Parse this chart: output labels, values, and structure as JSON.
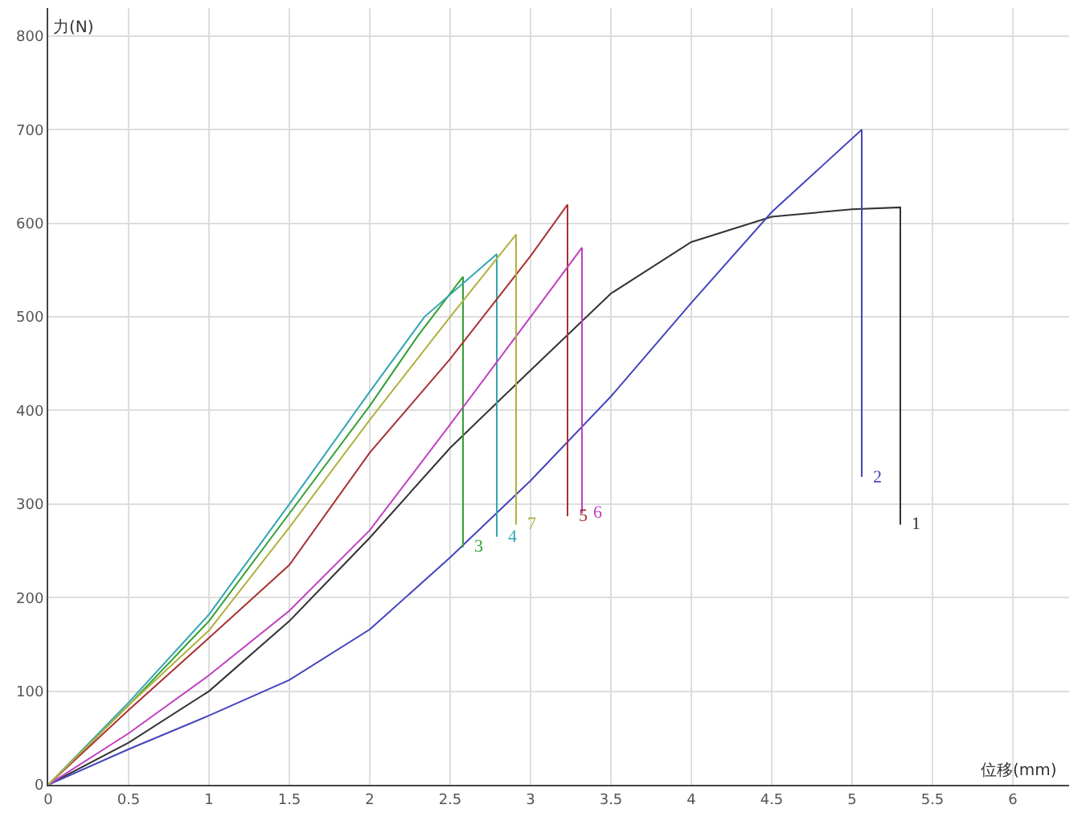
{
  "chart_data": {
    "type": "line",
    "xlabel": "位移(mm)",
    "ylabel": "力(N)",
    "xlim": [
      0,
      6.35
    ],
    "ylim": [
      0,
      830
    ],
    "xticks": [
      0,
      0.5,
      1,
      1.5,
      2,
      2.5,
      3,
      3.5,
      4,
      4.5,
      5,
      5.5,
      6
    ],
    "yticks": [
      0,
      100,
      200,
      300,
      400,
      500,
      600,
      700,
      800
    ],
    "grid": true,
    "legend": false,
    "marker": "none",
    "line_style": "solid",
    "series": [
      {
        "name": "1",
        "color": "#333333",
        "x": [
          0,
          0.5,
          1,
          1.5,
          2,
          2.5,
          3,
          3.5,
          4,
          4.5,
          5,
          5.3,
          5.3
        ],
        "values": [
          0,
          45,
          100,
          175,
          264,
          360,
          443,
          525,
          580,
          607,
          615,
          617,
          278
        ]
      },
      {
        "name": "2",
        "color": "#4444c0",
        "x": [
          0,
          0.5,
          1,
          1.5,
          2,
          2.5,
          3,
          3.5,
          4,
          4.5,
          5.06,
          5.06
        ],
        "values": [
          0,
          38,
          74,
          112,
          166,
          243,
          325,
          415,
          515,
          612,
          700,
          329
        ]
      },
      {
        "name": "3",
        "color": "#33a033",
        "x": [
          0,
          0.5,
          1,
          1.5,
          2,
          2.3,
          2.58,
          2.58
        ],
        "values": [
          0,
          85,
          175,
          290,
          405,
          480,
          543,
          254
        ]
      },
      {
        "name": "4",
        "color": "#33a6b0",
        "x": [
          0,
          0.5,
          1,
          1.5,
          2,
          2.34,
          2.79,
          2.79
        ],
        "values": [
          0,
          88,
          182,
          300,
          420,
          500,
          567,
          265
        ]
      },
      {
        "name": "5",
        "color": "#a83232",
        "x": [
          0,
          0.5,
          1,
          1.5,
          2,
          2.5,
          3,
          3.23,
          3.23
        ],
        "values": [
          0,
          80,
          157,
          235,
          355,
          455,
          565,
          620,
          287
        ]
      },
      {
        "name": "6",
        "color": "#c040c0",
        "x": [
          0,
          0.5,
          1,
          1.5,
          2,
          2.5,
          3,
          3.32,
          3.32
        ],
        "values": [
          0,
          55,
          117,
          186,
          272,
          385,
          500,
          574,
          290
        ]
      },
      {
        "name": "7",
        "color": "#b0b040",
        "x": [
          0,
          0.5,
          1,
          1.5,
          2,
          2.5,
          2.91,
          2.91
        ],
        "values": [
          0,
          85,
          165,
          275,
          390,
          500,
          588,
          278
        ]
      }
    ]
  }
}
